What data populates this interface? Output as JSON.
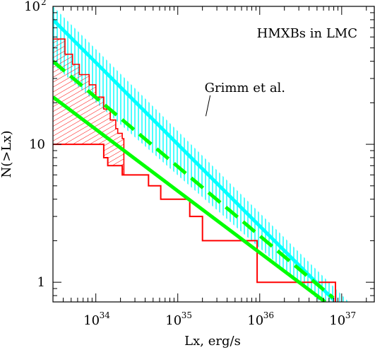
{
  "chart_data": {
    "type": "line",
    "title": "HMXBs in LMC",
    "xlabel": "Lx, erg/s",
    "ylabel": "N(>Lx)",
    "xscale": "log",
    "yscale": "log",
    "xlim": [
      3e+33,
      2.5e+37
    ],
    "ylim": [
      0.72,
      100
    ],
    "grid": false,
    "x_ticks": [
      {
        "value": 1e+34,
        "base": "10",
        "exp": "34"
      },
      {
        "value": 1e+35,
        "base": "10",
        "exp": "35"
      },
      {
        "value": 1e+36,
        "base": "10",
        "exp": "36"
      },
      {
        "value": 1e+37,
        "base": "10",
        "exp": "37"
      }
    ],
    "y_ticks": [
      {
        "value": 1,
        "label": "1",
        "sup": ""
      },
      {
        "value": 10,
        "label": "10",
        "sup": ""
      },
      {
        "value": 100,
        "label": "10",
        "sup": "2"
      }
    ],
    "annotation": {
      "text": "Grimm et al.",
      "points_to": {
        "x": 2.2e+35,
        "y": 16.0
      },
      "at": {
        "x": 2.8e+35,
        "y": 24.0
      }
    },
    "colors": {
      "cyan": "#00ffff",
      "green": "#00ff00",
      "red": "#ff0000"
    },
    "series": [
      {
        "kind": "band",
        "color": "#00ffff",
        "upper": [
          [
            3e+33,
            100
          ],
          [
            1.22e+37,
            0.72
          ]
        ],
        "lower": [
          [
            3e+33,
            38
          ],
          [
            5.5e+36,
            0.72
          ]
        ]
      },
      {
        "kind": "line",
        "color": "#00ffff",
        "points": [
          [
            3e+33,
            80
          ],
          [
            7.9e+36,
            0.75
          ]
        ]
      },
      {
        "kind": "line",
        "color": "#00ff00",
        "dashed": true,
        "points": [
          [
            3e+33,
            40
          ],
          [
            7.9e+36,
            0.77
          ]
        ]
      },
      {
        "kind": "line",
        "color": "#00ff00",
        "points": [
          [
            3e+33,
            22
          ],
          [
            6.3e+36,
            0.72
          ]
        ]
      },
      {
        "kind": "step",
        "color": "#ff0000",
        "points": [
          [
            3e+33,
            10
          ],
          [
            1.25e+34,
            10
          ],
          [
            1.25e+34,
            8
          ],
          [
            1.4e+34,
            8
          ],
          [
            1.4e+34,
            7
          ],
          [
            2.1e+34,
            7
          ],
          [
            2.1e+34,
            6
          ],
          [
            4.4e+34,
            6
          ],
          [
            4.4e+34,
            5
          ],
          [
            6.2e+34,
            5
          ],
          [
            6.2e+34,
            4
          ],
          [
            1.4e+35,
            4
          ],
          [
            1.4e+35,
            3
          ],
          [
            2e+35,
            3
          ],
          [
            2e+35,
            2
          ],
          [
            9.3e+35,
            2
          ],
          [
            9.3e+35,
            1
          ],
          [
            8.4e+36,
            1
          ],
          [
            8.4e+36,
            0.72
          ]
        ]
      },
      {
        "kind": "hatched_region",
        "color": "#ff0000",
        "upper": [
          [
            3e+33,
            58
          ],
          [
            4.2e+33,
            58
          ],
          [
            4.2e+33,
            45
          ],
          [
            5.2e+33,
            45
          ],
          [
            5.2e+33,
            38
          ],
          [
            6.3e+33,
            38
          ],
          [
            6.3e+33,
            32
          ],
          [
            8.3e+33,
            32
          ],
          [
            8.3e+33,
            27
          ],
          [
            1e+34,
            27
          ],
          [
            1e+34,
            22
          ],
          [
            1.25e+34,
            22
          ],
          [
            1.25e+34,
            18
          ],
          [
            1.5e+34,
            18
          ],
          [
            1.5e+34,
            15
          ],
          [
            1.75e+34,
            15
          ],
          [
            1.75e+34,
            13
          ],
          [
            1.85e+34,
            13
          ],
          [
            1.85e+34,
            12
          ],
          [
            2.1e+34,
            12
          ],
          [
            2.1e+34,
            11
          ],
          [
            2.2e+34,
            11
          ],
          [
            2.2e+34,
            8
          ],
          [
            2.2e+34,
            7
          ],
          [
            2.2e+34,
            6
          ]
        ],
        "lower": [
          [
            3e+33,
            10
          ],
          [
            1.25e+34,
            10
          ],
          [
            1.25e+34,
            8
          ],
          [
            1.4e+34,
            8
          ],
          [
            1.4e+34,
            7
          ],
          [
            2.1e+34,
            7
          ],
          [
            2.1e+34,
            6
          ],
          [
            2.2e+34,
            6
          ]
        ]
      }
    ]
  }
}
